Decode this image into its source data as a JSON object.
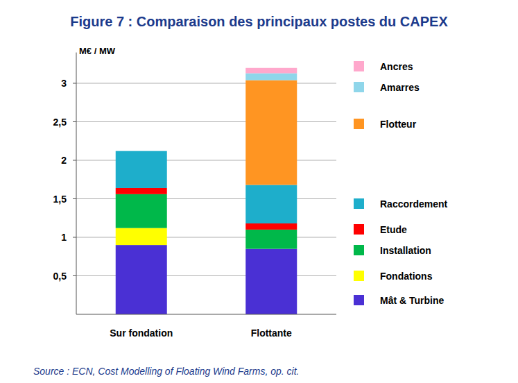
{
  "chart_data": {
    "type": "bar",
    "title": "Figure 7 : Comparaison des principaux postes du CAPEX",
    "y_label": "M€ / MW",
    "source": "Source : ECN, Cost Modelling of Floating Wind Farms, op. cit.",
    "stacked": true,
    "grid": true,
    "legend": "right",
    "categories": [
      "Sur fondation",
      "Flottante"
    ],
    "ylim": [
      0,
      3.4
    ],
    "yticks": [
      {
        "value": 0.5,
        "label": "0,5"
      },
      1,
      {
        "value": 1.5,
        "label": "1,5"
      },
      2,
      {
        "value": 2.5,
        "label": "2,5"
      },
      3
    ],
    "series": [
      {
        "name": "Mât & Turbine",
        "color": "#4a30d4",
        "values": [
          0.9,
          0.85
        ]
      },
      {
        "name": "Fondations",
        "color": "#ffff00",
        "values": [
          0.22,
          0
        ]
      },
      {
        "name": "Installation",
        "color": "#00b84a",
        "values": [
          0.44,
          0.25
        ]
      },
      {
        "name": "Etude",
        "color": "#ff0000",
        "values": [
          0.08,
          0.08
        ]
      },
      {
        "name": "Raccordement",
        "color": "#1eaecb",
        "values": [
          0.48,
          0.5
        ]
      },
      {
        "name": "Flotteur",
        "color": "#ff9522",
        "values": [
          0,
          1.36
        ]
      },
      {
        "name": "Amarres",
        "color": "#8fd6ea",
        "values": [
          0,
          0.09
        ]
      },
      {
        "name": "Ancres",
        "color": "#ffa8cc",
        "values": [
          0,
          0.07
        ]
      }
    ]
  }
}
